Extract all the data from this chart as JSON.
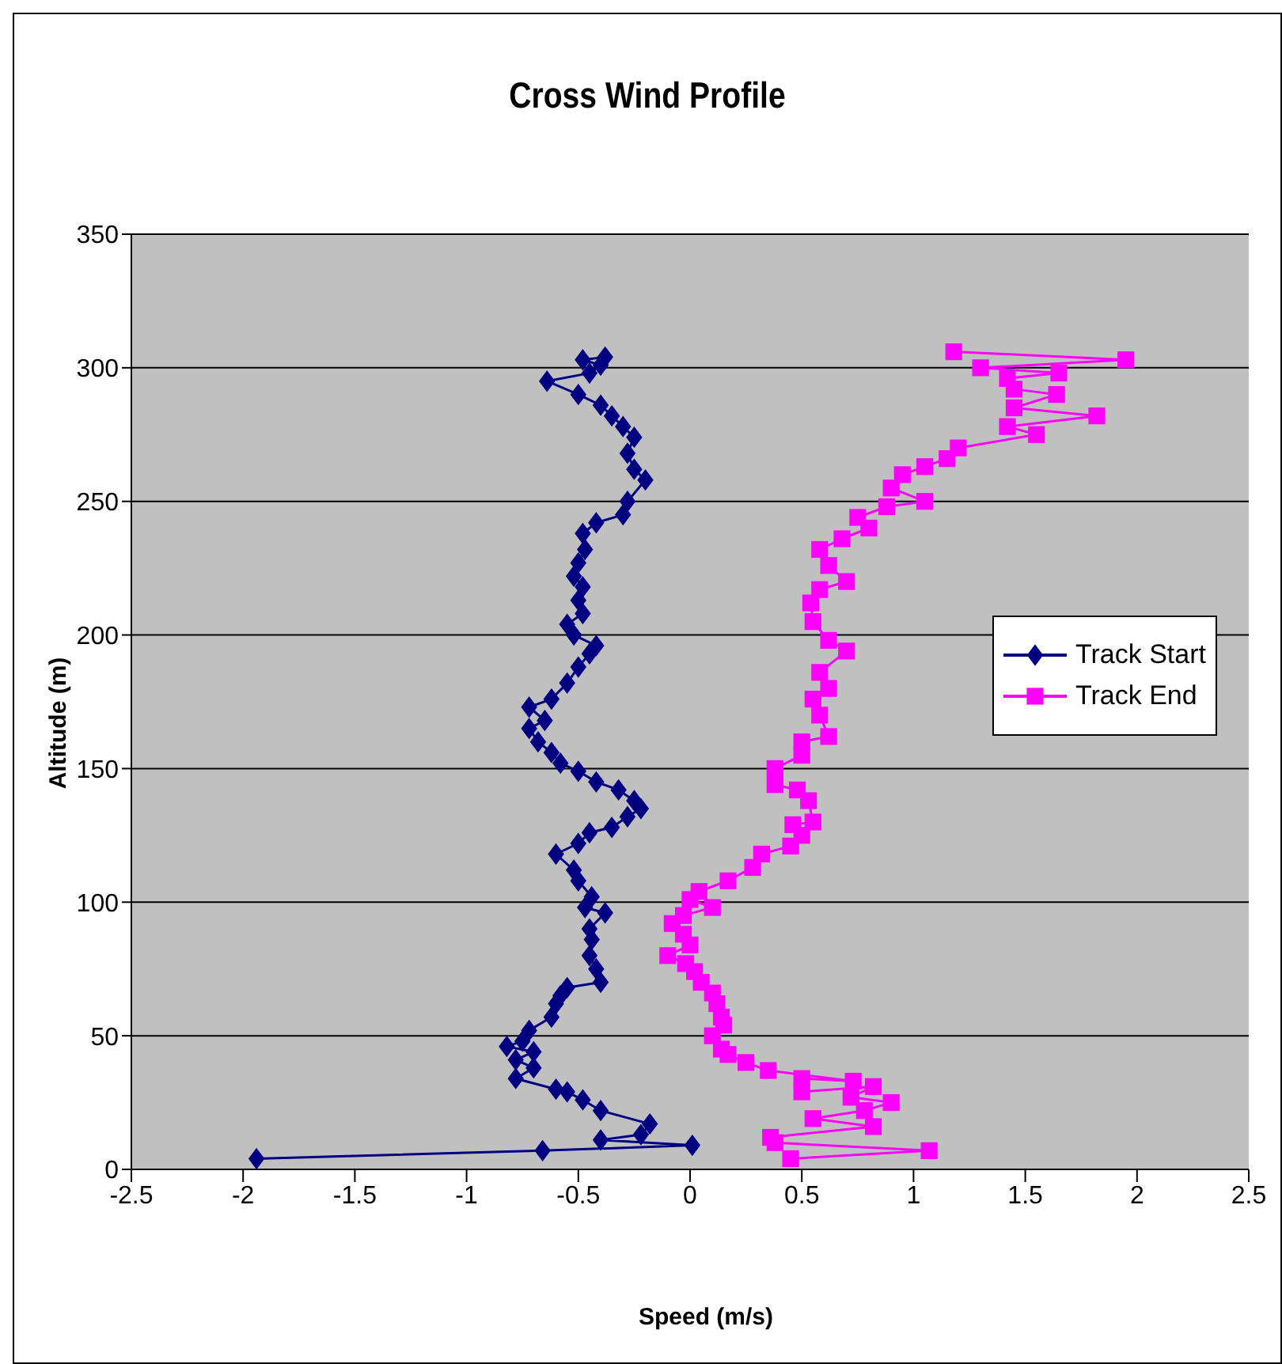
{
  "chart_data": {
    "type": "line",
    "title": "Cross Wind Profile",
    "xlabel": "Speed (m/s)",
    "ylabel": "Altitude (m)",
    "xlim": [
      -2.5,
      2.5
    ],
    "xticks": [
      -2.5,
      -2,
      -1.5,
      -1,
      -0.5,
      0,
      0.5,
      1,
      1.5,
      2,
      2.5
    ],
    "ylim": [
      0,
      350
    ],
    "yticks": [
      0,
      50,
      100,
      150,
      200,
      250,
      300,
      350
    ],
    "grid": "y",
    "legend": "right",
    "line_style": "solid",
    "series": [
      {
        "name": "Track Start",
        "color": "#000080",
        "marker": "diamond",
        "x": [
          -1.94,
          -0.66,
          0.01,
          -0.4,
          -0.22,
          -0.18,
          -0.4,
          -0.48,
          -0.55,
          -0.6,
          -0.78,
          -0.7,
          -0.78,
          -0.7,
          -0.82,
          -0.75,
          -0.72,
          -0.62,
          -0.6,
          -0.58,
          -0.55,
          -0.4,
          -0.42,
          -0.45,
          -0.44,
          -0.45,
          -0.38,
          -0.47,
          -0.44,
          -0.5,
          -0.52,
          -0.6,
          -0.5,
          -0.45,
          -0.35,
          -0.28,
          -0.22,
          -0.25,
          -0.32,
          -0.42,
          -0.5,
          -0.58,
          -0.62,
          -0.68,
          -0.72,
          -0.65,
          -0.72,
          -0.62,
          -0.55,
          -0.5,
          -0.45,
          -0.42,
          -0.52,
          -0.55,
          -0.48,
          -0.5,
          -0.48,
          -0.52,
          -0.5,
          -0.47,
          -0.48,
          -0.42,
          -0.3,
          -0.28,
          -0.2,
          -0.25,
          -0.28,
          -0.25,
          -0.3,
          -0.35,
          -0.4,
          -0.5,
          -0.64,
          -0.45,
          -0.4,
          -0.48,
          -0.38
        ],
        "values": [
          4,
          7,
          9,
          11,
          13,
          17,
          22,
          26,
          29,
          30,
          34,
          38,
          41,
          44,
          46,
          48,
          52,
          57,
          62,
          65,
          68,
          70,
          75,
          80,
          86,
          90,
          96,
          98,
          102,
          108,
          112,
          118,
          122,
          126,
          128,
          132,
          135,
          138,
          142,
          145,
          149,
          152,
          156,
          160,
          165,
          168,
          173,
          176,
          182,
          188,
          193,
          196,
          200,
          204,
          208,
          213,
          218,
          222,
          227,
          232,
          238,
          242,
          245,
          250,
          258,
          262,
          268,
          274,
          278,
          282,
          286,
          290,
          295,
          298,
          301,
          303,
          304
        ]
      },
      {
        "name": "Track End",
        "color": "#ff00ff",
        "marker": "square",
        "x": [
          0.45,
          1.07,
          0.38,
          0.36,
          0.82,
          0.55,
          0.78,
          0.9,
          0.72,
          0.82,
          0.5,
          0.5,
          0.73,
          0.35,
          0.25,
          0.17,
          0.14,
          0.1,
          0.15,
          0.14,
          0.12,
          0.1,
          0.05,
          0.02,
          -0.02,
          -0.1,
          0,
          -0.03,
          -0.08,
          -0.03,
          0.1,
          0,
          0.04,
          0.17,
          0.28,
          0.32,
          0.45,
          0.5,
          0.46,
          0.55,
          0.53,
          0.48,
          0.38,
          0.38,
          0.5,
          0.5,
          0.62,
          0.58,
          0.55,
          0.62,
          0.58,
          0.7,
          0.62,
          0.55,
          0.54,
          0.58,
          0.7,
          0.62,
          0.58,
          0.68,
          0.8,
          0.75,
          0.88,
          1.05,
          0.9,
          0.95,
          1.05,
          1.15,
          1.2,
          1.55,
          1.42,
          1.82,
          1.45,
          1.64,
          1.45,
          1.42,
          1.65,
          1.3,
          1.95,
          1.18
        ],
        "values": [
          4,
          7,
          10,
          12,
          16,
          19,
          22,
          25,
          27,
          31,
          29,
          34,
          33,
          37,
          40,
          43,
          45,
          50,
          54,
          57,
          62,
          66,
          70,
          74,
          77,
          80,
          84,
          88,
          92,
          95,
          98,
          101,
          104,
          108,
          113,
          118,
          121,
          125,
          129,
          130,
          138,
          142,
          144,
          150,
          155,
          160,
          162,
          170,
          176,
          180,
          186,
          194,
          198,
          205,
          212,
          217,
          220,
          226,
          232,
          236,
          240,
          244,
          248,
          250,
          255,
          260,
          263,
          266,
          270,
          275,
          278,
          282,
          285,
          290,
          292,
          296,
          298,
          300,
          303,
          306
        ]
      }
    ]
  }
}
